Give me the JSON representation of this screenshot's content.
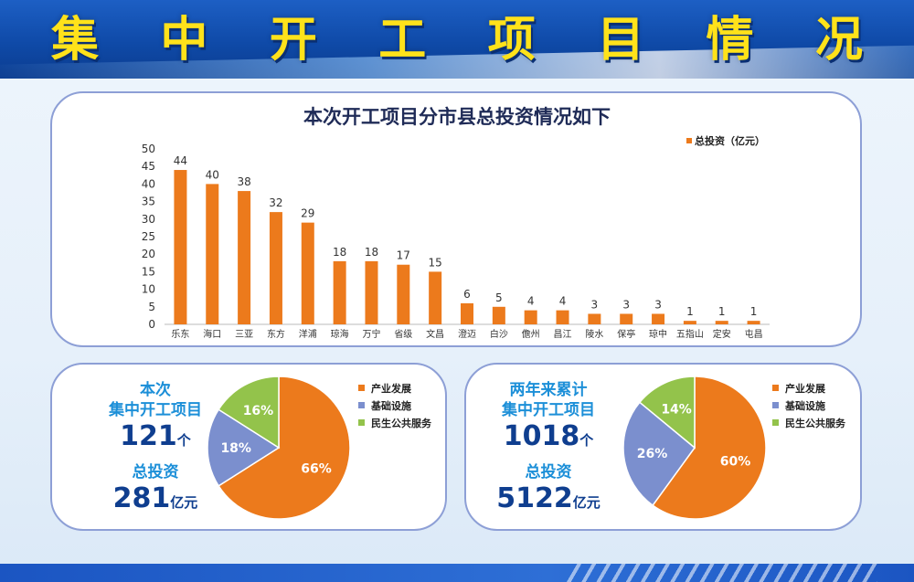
{
  "banner": {
    "title_chars": [
      "集",
      "中",
      "开",
      "工",
      "项",
      "目",
      "情",
      "况"
    ]
  },
  "colors": {
    "orange": "#ec7a1c",
    "blue": "#7b8fce",
    "green": "#93c34b",
    "navy": "#0f3e8f",
    "accent": "#1c8fd8"
  },
  "chart_data": [
    {
      "type": "bar",
      "title": "本次开工项目分市县总投资情况如下",
      "categories": [
        "乐东",
        "海口",
        "三亚",
        "东方",
        "洋浦",
        "琼海",
        "万宁",
        "省级",
        "文昌",
        "澄迈",
        "白沙",
        "儋州",
        "昌江",
        "陵水",
        "保亭",
        "琼中",
        "五指山",
        "定安",
        "屯昌"
      ],
      "series": [
        {
          "name": "总投资（亿元）",
          "values": [
            44,
            40,
            38,
            32,
            29,
            18,
            18,
            17,
            15,
            6,
            5,
            4,
            4,
            3,
            3,
            3,
            1,
            1,
            1
          ]
        }
      ],
      "ylim": [
        0,
        50
      ],
      "yticks": [
        0,
        5,
        10,
        15,
        20,
        25,
        30,
        35,
        40,
        45,
        50
      ],
      "grid": false,
      "legend": "top-right"
    },
    {
      "type": "pie",
      "labels": [
        "产业发展",
        "基础设施",
        "民生公共服务"
      ],
      "values": [
        66,
        18,
        16
      ],
      "value_labels": [
        "66%",
        "18%",
        "16%"
      ]
    },
    {
      "type": "pie",
      "labels": [
        "产业发展",
        "基础设施",
        "民生公共服务"
      ],
      "values": [
        60,
        26,
        14
      ],
      "value_labels": [
        "60%",
        "26%",
        "14%"
      ]
    }
  ],
  "left_stats": {
    "title_line1": "本次",
    "title_line2": "集中开工项目",
    "count": "121",
    "count_unit": "个",
    "invest_label": "总投资",
    "invest": "281",
    "invest_unit": "亿元"
  },
  "right_stats": {
    "title_line1": "两年来累计",
    "title_line2": "集中开工项目",
    "count": "1018",
    "count_unit": "个",
    "invest_label": "总投资",
    "invest": "5122",
    "invest_unit": "亿元"
  }
}
